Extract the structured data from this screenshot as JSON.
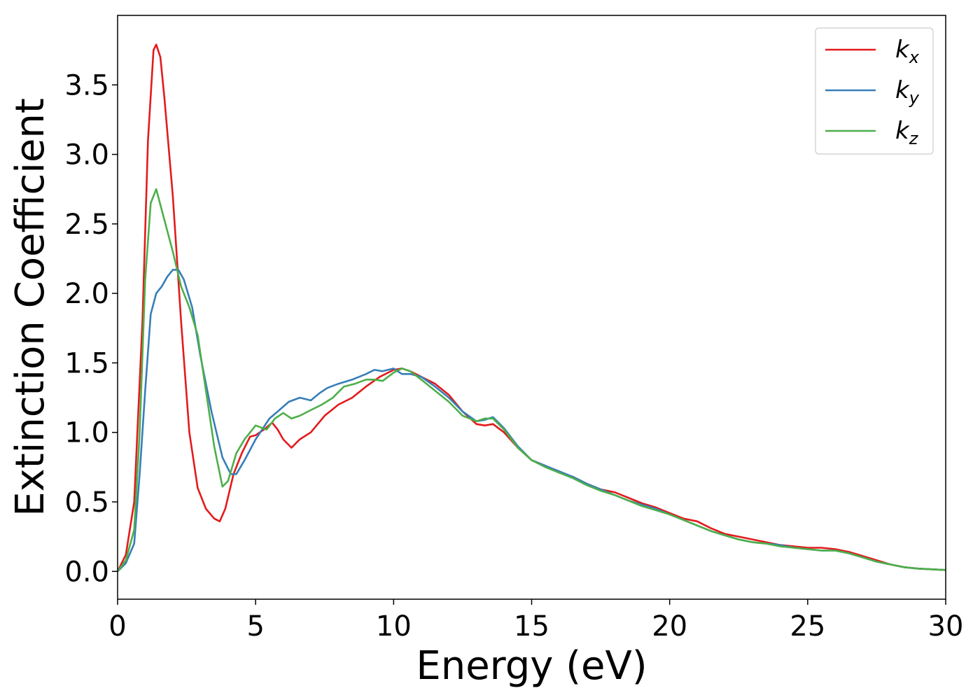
{
  "chart_data": {
    "type": "line",
    "title": "",
    "xlabel": "Energy (eV)",
    "ylabel": "Extinction Coefficient",
    "xlim": [
      0,
      30
    ],
    "ylim": [
      -0.2,
      4.0
    ],
    "xticks": [
      0,
      5,
      10,
      15,
      20,
      25,
      30
    ],
    "xtick_labels": [
      "0",
      "5",
      "10",
      "15",
      "20",
      "25",
      "30"
    ],
    "yticks": [
      0.0,
      0.5,
      1.0,
      1.5,
      2.0,
      2.5,
      3.0,
      3.5
    ],
    "ytick_labels": [
      "0.0",
      "0.5",
      "1.0",
      "1.5",
      "2.0",
      "2.5",
      "3.0",
      "3.5"
    ],
    "grid": false,
    "legend_position": "top-right",
    "series": [
      {
        "name": "k_x",
        "label_main": "k",
        "label_sub": "x",
        "color": "#e41a1c",
        "x": [
          0,
          0.3,
          0.6,
          0.9,
          1.1,
          1.3,
          1.4,
          1.55,
          1.7,
          2.0,
          2.3,
          2.6,
          2.9,
          3.2,
          3.5,
          3.7,
          3.9,
          4.2,
          4.5,
          4.8,
          5.0,
          5.3,
          5.6,
          5.8,
          6.0,
          6.3,
          6.6,
          7.0,
          7.5,
          8.0,
          8.5,
          9.0,
          9.5,
          10.0,
          10.3,
          10.6,
          11.0,
          11.5,
          12.0,
          12.5,
          13.0,
          13.3,
          13.6,
          14.0,
          14.5,
          15.0,
          15.5,
          16.0,
          16.5,
          17.0,
          17.5,
          18.0,
          18.5,
          19.0,
          19.5,
          20.0,
          20.5,
          21.0,
          21.5,
          22.0,
          22.5,
          23.0,
          23.5,
          24.0,
          24.5,
          25.0,
          25.5,
          26.0,
          26.5,
          27.0,
          27.5,
          28.0,
          28.5,
          29.0,
          29.5,
          30.0
        ],
        "y": [
          0.0,
          0.12,
          0.5,
          1.8,
          3.1,
          3.75,
          3.79,
          3.7,
          3.4,
          2.7,
          1.8,
          1.0,
          0.6,
          0.45,
          0.38,
          0.36,
          0.45,
          0.7,
          0.85,
          0.97,
          0.98,
          1.02,
          1.07,
          1.02,
          0.95,
          0.89,
          0.95,
          1.0,
          1.12,
          1.2,
          1.25,
          1.33,
          1.4,
          1.45,
          1.46,
          1.44,
          1.4,
          1.35,
          1.27,
          1.15,
          1.06,
          1.05,
          1.06,
          1.0,
          0.89,
          0.8,
          0.76,
          0.71,
          0.68,
          0.63,
          0.59,
          0.57,
          0.53,
          0.49,
          0.46,
          0.42,
          0.38,
          0.36,
          0.31,
          0.27,
          0.25,
          0.23,
          0.21,
          0.19,
          0.18,
          0.17,
          0.17,
          0.16,
          0.14,
          0.11,
          0.08,
          0.05,
          0.03,
          0.02,
          0.015,
          0.01
        ]
      },
      {
        "name": "k_y",
        "label_main": "k",
        "label_sub": "y",
        "color": "#377eb8",
        "x": [
          0,
          0.3,
          0.6,
          0.8,
          1.0,
          1.2,
          1.4,
          1.6,
          1.8,
          2.0,
          2.2,
          2.4,
          2.7,
          3.0,
          3.4,
          3.8,
          4.1,
          4.3,
          4.6,
          5.0,
          5.5,
          5.8,
          6.2,
          6.6,
          7.0,
          7.3,
          7.6,
          8.0,
          8.5,
          9.0,
          9.3,
          9.6,
          10.0,
          10.3,
          10.6,
          11.0,
          11.5,
          12.0,
          12.5,
          13.0,
          13.3,
          13.6,
          14.0,
          14.5,
          15.0,
          15.5,
          16.0,
          16.5,
          17.0,
          17.5,
          18.0,
          18.5,
          19.0,
          19.5,
          20.0,
          20.5,
          21.0,
          21.5,
          22.0,
          22.5,
          23.0,
          23.5,
          24.0,
          24.5,
          25.0,
          25.5,
          26.0,
          26.5,
          27.0,
          27.5,
          28.0,
          28.5,
          29.0,
          29.5,
          30.0
        ],
        "y": [
          0.0,
          0.06,
          0.2,
          0.7,
          1.3,
          1.85,
          2.0,
          2.05,
          2.12,
          2.17,
          2.17,
          2.1,
          1.9,
          1.55,
          1.15,
          0.82,
          0.7,
          0.7,
          0.8,
          0.95,
          1.1,
          1.15,
          1.22,
          1.25,
          1.23,
          1.28,
          1.32,
          1.35,
          1.38,
          1.42,
          1.45,
          1.44,
          1.46,
          1.42,
          1.42,
          1.4,
          1.33,
          1.25,
          1.15,
          1.08,
          1.09,
          1.11,
          1.03,
          0.9,
          0.8,
          0.76,
          0.72,
          0.68,
          0.63,
          0.59,
          0.55,
          0.51,
          0.48,
          0.45,
          0.41,
          0.37,
          0.33,
          0.29,
          0.26,
          0.23,
          0.21,
          0.2,
          0.19,
          0.17,
          0.16,
          0.15,
          0.15,
          0.13,
          0.1,
          0.07,
          0.05,
          0.03,
          0.02,
          0.015,
          0.01
        ]
      },
      {
        "name": "k_z",
        "label_main": "k",
        "label_sub": "z",
        "color": "#4daf4a",
        "x": [
          0,
          0.3,
          0.6,
          0.8,
          1.0,
          1.2,
          1.4,
          1.6,
          1.8,
          2.0,
          2.3,
          2.6,
          2.9,
          3.2,
          3.5,
          3.8,
          4.0,
          4.3,
          4.6,
          5.0,
          5.4,
          5.7,
          6.0,
          6.3,
          6.6,
          7.0,
          7.4,
          7.8,
          8.2,
          8.6,
          9.0,
          9.3,
          9.6,
          10.0,
          10.3,
          10.6,
          11.0,
          11.5,
          12.0,
          12.5,
          13.0,
          13.3,
          13.6,
          14.0,
          14.5,
          15.0,
          15.5,
          16.0,
          16.5,
          17.0,
          17.5,
          18.0,
          18.5,
          19.0,
          19.5,
          20.0,
          20.5,
          21.0,
          21.5,
          22.0,
          22.5,
          23.0,
          23.5,
          24.0,
          24.5,
          25.0,
          25.5,
          26.0,
          26.5,
          27.0,
          27.5,
          28.0,
          28.5,
          29.0,
          29.5,
          30.0
        ],
        "y": [
          0.0,
          0.08,
          0.3,
          1.0,
          2.1,
          2.65,
          2.75,
          2.6,
          2.45,
          2.3,
          2.05,
          1.9,
          1.7,
          1.3,
          0.9,
          0.61,
          0.65,
          0.85,
          0.95,
          1.05,
          1.02,
          1.1,
          1.14,
          1.1,
          1.12,
          1.16,
          1.2,
          1.25,
          1.33,
          1.35,
          1.38,
          1.38,
          1.37,
          1.43,
          1.46,
          1.44,
          1.38,
          1.3,
          1.22,
          1.12,
          1.08,
          1.1,
          1.1,
          1.02,
          0.89,
          0.8,
          0.75,
          0.71,
          0.67,
          0.62,
          0.58,
          0.55,
          0.51,
          0.47,
          0.44,
          0.41,
          0.37,
          0.33,
          0.29,
          0.26,
          0.23,
          0.21,
          0.2,
          0.18,
          0.17,
          0.16,
          0.15,
          0.15,
          0.13,
          0.1,
          0.07,
          0.05,
          0.03,
          0.02,
          0.015,
          0.01
        ]
      }
    ]
  }
}
